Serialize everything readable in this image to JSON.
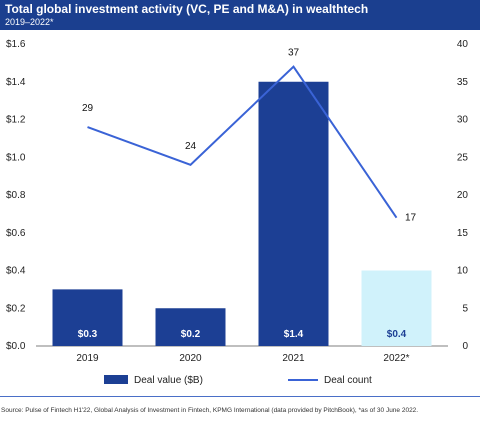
{
  "header": {
    "title": "Total global investment activity (VC, PE and M&A) in wealthtech",
    "subtitle": "2019–2022*",
    "background_color": "#1b3f8f"
  },
  "chart_data": {
    "type": "bar+line",
    "categories": [
      "2019",
      "2020",
      "2021",
      "2022*"
    ],
    "series": [
      {
        "name": "Deal value ($B)",
        "type": "bar",
        "axis": "left",
        "values": [
          0.3,
          0.2,
          1.4,
          0.4
        ],
        "labels": [
          "$0.3",
          "$0.2",
          "$1.4",
          "$0.4"
        ],
        "colors": [
          "#1c3f94",
          "#1c3f94",
          "#1c3f94",
          "#d0f2fb"
        ],
        "label_colors": [
          "#ffffff",
          "#ffffff",
          "#ffffff",
          "#1c3f94"
        ]
      },
      {
        "name": "Deal count",
        "type": "line",
        "axis": "right",
        "values": [
          29,
          24,
          37,
          17
        ],
        "labels": [
          "29",
          "24",
          "37",
          "17"
        ],
        "color": "#3a63d6"
      }
    ],
    "y_left": {
      "ylim": [
        0,
        1.6
      ],
      "ticks": [
        "$0.0",
        "$0.2",
        "$0.4",
        "$0.6",
        "$0.8",
        "$1.0",
        "$1.2",
        "$1.4",
        "$1.6"
      ]
    },
    "y_right": {
      "ylim": [
        0,
        40
      ],
      "ticks": [
        "0",
        "5",
        "10",
        "15",
        "20",
        "25",
        "30",
        "35",
        "40"
      ]
    },
    "grid": false,
    "legend_placement": "bottom"
  },
  "source": "Source: Pulse of Fintech H1'22, Global Analysis of Investment in Fintech, KPMG International (data provided by PitchBook), *as of 30 June 2022."
}
